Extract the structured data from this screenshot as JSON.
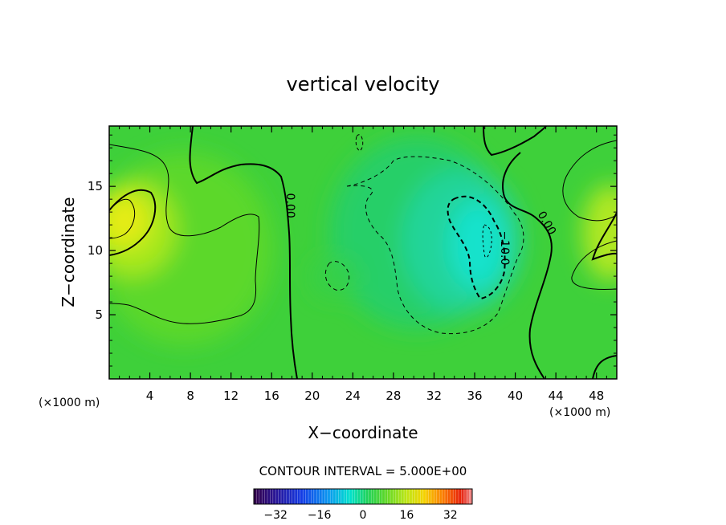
{
  "chart_data": {
    "type": "heatmap",
    "title": "vertical velocity",
    "xlabel": "X−coordinate",
    "ylabel": "Z−coordinate",
    "x_unit_left": "(×1000 m)",
    "x_unit_right": "(×1000 m)",
    "xlim": [
      0,
      50
    ],
    "ylim": [
      0,
      19.7
    ],
    "x_ticks": [
      4,
      8,
      12,
      16,
      20,
      24,
      28,
      32,
      36,
      40,
      44,
      48
    ],
    "x_tick_labels": [
      "4",
      "8",
      "12",
      "16",
      "20",
      "24",
      "28",
      "32",
      "36",
      "40",
      "44",
      "48"
    ],
    "y_ticks": [
      5,
      10,
      15
    ],
    "y_tick_labels": [
      "5",
      "10",
      "15"
    ],
    "contour_interval_text": "CONTOUR INTERVAL = 5.000E+00",
    "contour_labels": [
      {
        "text": "0.00",
        "x": 17.5,
        "y": 13.5,
        "rotation": 90
      },
      {
        "text": "0.00",
        "x": 42.8,
        "y": 12.0,
        "rotation": 60
      },
      {
        "text": "−10.0",
        "x": 38.6,
        "y": 10.2,
        "rotation": 90
      }
    ],
    "features": [
      {
        "kind": "updraft",
        "x": 1.5,
        "z": 12.0,
        "value": 11
      },
      {
        "kind": "updraft",
        "x": 50.0,
        "z": 10.5,
        "value": 9
      },
      {
        "kind": "updraft",
        "x": 7.0,
        "z": 9.0,
        "value": 4
      },
      {
        "kind": "downdraft",
        "x": 36.5,
        "z": 10.0,
        "value": -12
      },
      {
        "kind": "downdraft",
        "x": 24.0,
        "z": 14.5,
        "value": -4
      },
      {
        "kind": "downdraft",
        "x": 22.0,
        "z": 8.0,
        "value": -4
      }
    ],
    "colorbar": {
      "range": [
        -40,
        40
      ],
      "ticks": [
        -32,
        -16,
        0,
        16,
        32
      ],
      "tick_labels": [
        "−32",
        "−16",
        "0",
        "16",
        "32"
      ]
    }
  }
}
